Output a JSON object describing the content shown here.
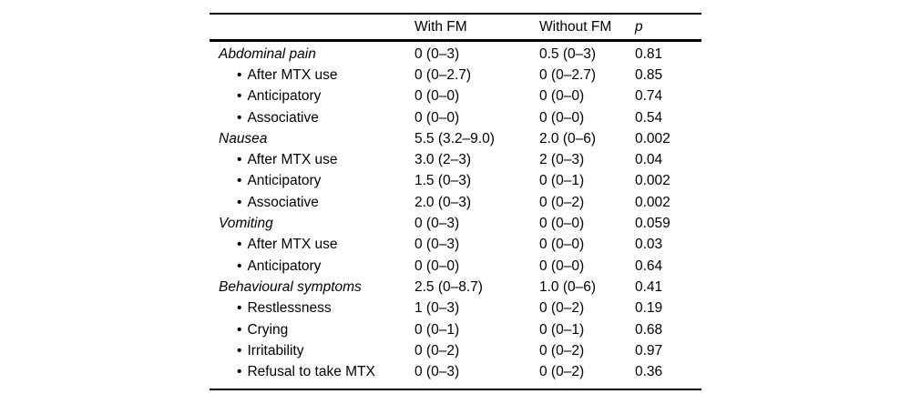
{
  "table": {
    "bullet": "•",
    "header": {
      "label": "",
      "with_fm": "With FM",
      "without_fm": "Without FM",
      "p": "p"
    },
    "rows": [
      {
        "label": "Abdominal pain",
        "section": true,
        "with_fm": "0 (0–3)",
        "without_fm": "0.5 (0–3)",
        "p": "0.81"
      },
      {
        "label": "After MTX use",
        "section": false,
        "with_fm": "0 (0–2.7)",
        "without_fm": "0 (0–2.7)",
        "p": "0.85"
      },
      {
        "label": "Anticipatory",
        "section": false,
        "with_fm": "0 (0–0)",
        "without_fm": "0 (0–0)",
        "p": "0.74"
      },
      {
        "label": "Associative",
        "section": false,
        "with_fm": "0 (0–0)",
        "without_fm": "0 (0–0)",
        "p": "0.54"
      },
      {
        "label": "Nausea",
        "section": true,
        "with_fm": "5.5 (3.2–9.0)",
        "without_fm": "2.0 (0–6)",
        "p": "0.002"
      },
      {
        "label": "After MTX use",
        "section": false,
        "with_fm": "3.0 (2–3)",
        "without_fm": "2 (0–3)",
        "p": "0.04"
      },
      {
        "label": "Anticipatory",
        "section": false,
        "with_fm": "1.5 (0–3)",
        "without_fm": "0 (0–1)",
        "p": "0.002"
      },
      {
        "label": "Associative",
        "section": false,
        "with_fm": "2.0 (0–3)",
        "without_fm": "0 (0–2)",
        "p": "0.002"
      },
      {
        "label": "Vomiting",
        "section": true,
        "with_fm": "0 (0–3)",
        "without_fm": "0 (0–0)",
        "p": "0.059"
      },
      {
        "label": "After MTX use",
        "section": false,
        "with_fm": "0 (0–3)",
        "without_fm": "0 (0–0)",
        "p": "0.03"
      },
      {
        "label": "Anticipatory",
        "section": false,
        "with_fm": "0 (0–0)",
        "without_fm": "0 (0–0)",
        "p": "0.64"
      },
      {
        "label": "Behavioural symptoms",
        "section": true,
        "with_fm": "2.5 (0–8.7)",
        "without_fm": "1.0 (0–6)",
        "p": "0.41"
      },
      {
        "label": "Restlessness",
        "section": false,
        "with_fm": "1 (0–3)",
        "without_fm": "0 (0–2)",
        "p": "0.19"
      },
      {
        "label": "Crying",
        "section": false,
        "with_fm": "0 (0–1)",
        "without_fm": "0 (0–1)",
        "p": "0.68"
      },
      {
        "label": "Irritability",
        "section": false,
        "with_fm": "0 (0–2)",
        "without_fm": "0 (0–2)",
        "p": "0.97"
      },
      {
        "label": "Refusal to take MTX",
        "section": false,
        "with_fm": "0 (0–3)",
        "without_fm": "0 (0–2)",
        "p": "0.36"
      }
    ]
  }
}
